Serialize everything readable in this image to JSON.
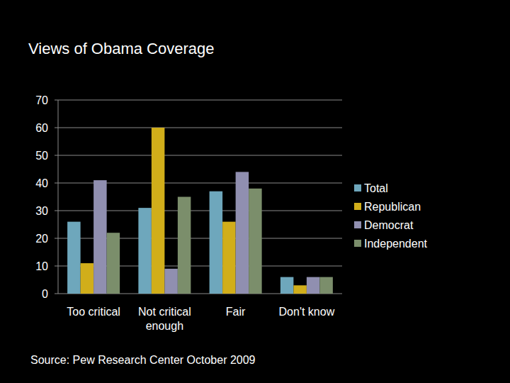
{
  "chart_data": {
    "type": "bar",
    "title": "Views of Obama Coverage",
    "source": "Source: Pew Research Center October 2009",
    "categories": [
      "Too critical",
      "Not critical enough",
      "Fair",
      "Don't know"
    ],
    "series": [
      {
        "name": "Total",
        "color": "#6ea7bc",
        "values": [
          26,
          31,
          37,
          6
        ]
      },
      {
        "name": "Republican",
        "color": "#d1ae1a",
        "values": [
          11,
          60,
          26,
          3
        ]
      },
      {
        "name": "Democrat",
        "color": "#908fb0",
        "values": [
          41,
          9,
          44,
          6
        ]
      },
      {
        "name": "Independent",
        "color": "#7b8e6b",
        "values": [
          22,
          35,
          38,
          6
        ]
      }
    ],
    "ylim": [
      0,
      70
    ],
    "yticks": [
      0,
      10,
      20,
      30,
      40,
      50,
      60,
      70
    ],
    "grid": true,
    "legend": "right"
  }
}
